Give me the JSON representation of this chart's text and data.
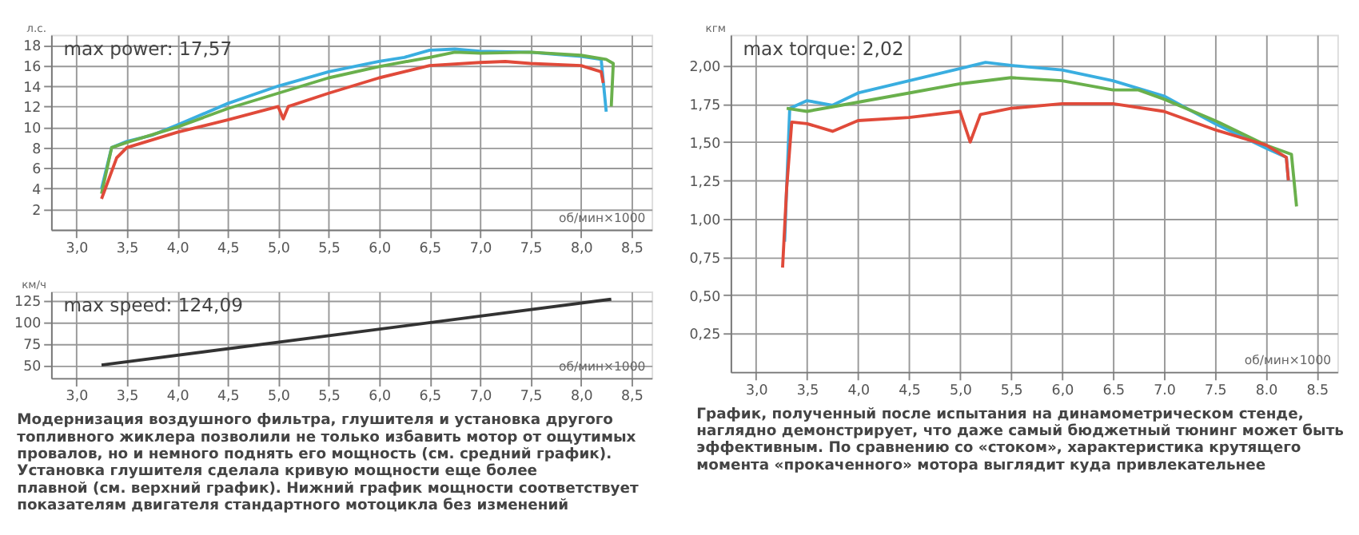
{
  "chart_data": [
    {
      "type": "line",
      "title": "max power: 17,57",
      "ylabel": "л.с.",
      "xlabel": "об/мин×1000",
      "grid": true,
      "legend": false,
      "marker": "none",
      "line_style": "solid",
      "xlim": [
        2.75,
        8.7
      ],
      "xticks": [
        {
          "value": 3,
          "label": "3,0"
        },
        {
          "value": 3.5,
          "label": "3,5"
        },
        {
          "value": 4,
          "label": "4,0"
        },
        {
          "value": 4.5,
          "label": "4,5"
        },
        {
          "value": 5,
          "label": "5,0"
        },
        {
          "value": 5.5,
          "label": "5,5"
        },
        {
          "value": 6,
          "label": "6,0"
        },
        {
          "value": 6.5,
          "label": "6,5"
        },
        {
          "value": 7,
          "label": "7,0"
        },
        {
          "value": 7.5,
          "label": "7,5"
        },
        {
          "value": 8,
          "label": "8,0"
        },
        {
          "value": 8.5,
          "label": "8,5"
        }
      ],
      "ylim": [
        0,
        19
      ],
      "yticks": [
        2,
        4,
        6,
        8,
        10,
        12,
        14,
        16,
        18
      ],
      "series": [
        {
          "color": "#3aaee0",
          "x": [
            3.25,
            3.35,
            3.5,
            3.75,
            4.0,
            4.5,
            5.0,
            5.5,
            6.0,
            6.25,
            6.5,
            6.75,
            7.0,
            7.5,
            7.75,
            8.0,
            8.2,
            8.25
          ],
          "values": [
            4,
            8,
            8.6,
            9.2,
            10.2,
            12.3,
            14.0,
            15.4,
            16.4,
            16.8,
            17.5,
            17.6,
            17.4,
            17.3,
            17.1,
            16.9,
            16.6,
            11.5
          ]
        },
        {
          "color": "#6ab04c",
          "x": [
            3.25,
            3.35,
            3.5,
            4.0,
            4.5,
            5.0,
            5.5,
            6.0,
            6.5,
            6.75,
            7.0,
            7.5,
            8.0,
            8.25,
            8.32,
            8.3
          ],
          "values": [
            3.5,
            8,
            8.5,
            10.0,
            11.8,
            13.3,
            14.8,
            15.9,
            16.8,
            17.3,
            17.2,
            17.3,
            17.0,
            16.6,
            16.2,
            12.0
          ]
        },
        {
          "color": "#e04a3a",
          "x": [
            3.25,
            3.4,
            3.5,
            4.0,
            4.5,
            5.0,
            5.05,
            5.1,
            5.5,
            6.0,
            6.5,
            7.0,
            7.25,
            7.5,
            8.0,
            8.2,
            8.22
          ],
          "values": [
            3,
            7,
            8.0,
            9.5,
            10.7,
            12.0,
            10.8,
            12.0,
            13.3,
            14.8,
            16.0,
            16.3,
            16.4,
            16.2,
            16.0,
            15.4,
            14.3
          ]
        }
      ]
    },
    {
      "type": "line",
      "title": "max speed: 124,09",
      "ylabel": "км/ч",
      "xlabel": "об/мин×1000",
      "grid": true,
      "legend": false,
      "marker": "none",
      "line_style": "solid",
      "xlim": [
        2.75,
        8.7
      ],
      "xticks": [
        {
          "value": 3,
          "label": "3,0"
        },
        {
          "value": 3.5,
          "label": "3,5"
        },
        {
          "value": 4,
          "label": "4,0"
        },
        {
          "value": 4.5,
          "label": "4,5"
        },
        {
          "value": 5,
          "label": "5,0"
        },
        {
          "value": 5.5,
          "label": "5,5"
        },
        {
          "value": 6,
          "label": "6,0"
        },
        {
          "value": 6.5,
          "label": "6,5"
        },
        {
          "value": 7,
          "label": "7,0"
        },
        {
          "value": 7.5,
          "label": "7,5"
        },
        {
          "value": 8,
          "label": "8,0"
        },
        {
          "value": 8.5,
          "label": "8,5"
        }
      ],
      "ylim": [
        35,
        135
      ],
      "yticks": [
        50,
        75,
        100,
        125
      ],
      "series": [
        {
          "color": "#333333",
          "x": [
            3.25,
            8.3
          ],
          "values": [
            50,
            126
          ]
        }
      ],
      "annotations": [
        "Модернизация воздушного фильтра, глушителя и установка другого\nтопливного жиклера позволили не только избавить мотор от ощутимых\nпровалов, но и немного поднять его мощность (см. средний график).\nУстановка глушителя сделала кривую мощности еще более\nплавной (см. верхний график). Нижний график мощности соответствует\nпоказателям двигателя стандартного мотоцикла без изменений"
      ]
    },
    {
      "type": "line",
      "title": "max torque: 2,02",
      "ylabel": "кгм",
      "xlabel": "об/мин×1000",
      "grid": true,
      "legend": false,
      "marker": "none",
      "line_style": "solid",
      "xlim": [
        2.75,
        8.7
      ],
      "xticks": [
        {
          "value": 3,
          "label": "3,0"
        },
        {
          "value": 3.5,
          "label": "3,5"
        },
        {
          "value": 4,
          "label": "4,0"
        },
        {
          "value": 4.5,
          "label": "4,5"
        },
        {
          "value": 5,
          "label": "5,0"
        },
        {
          "value": 5.5,
          "label": "5,5"
        },
        {
          "value": 6,
          "label": "6,0"
        },
        {
          "value": 6.5,
          "label": "6.5"
        },
        {
          "value": 7,
          "label": "7.0"
        },
        {
          "value": 7.5,
          "label": "7.5"
        },
        {
          "value": 8,
          "label": "8.0"
        },
        {
          "value": 8.5,
          "label": "8.5"
        }
      ],
      "ylim": [
        0,
        2.2
      ],
      "yticks": [
        {
          "value": 0.25,
          "label": "0,25"
        },
        {
          "value": 0.5,
          "label": "0,50"
        },
        {
          "value": 0.75,
          "label": "0,75"
        },
        {
          "value": 1,
          "label": "1,00"
        },
        {
          "value": 1.25,
          "label": "1,25"
        },
        {
          "value": 1.5,
          "label": "1,50"
        },
        {
          "value": 1.75,
          "label": "1,75"
        },
        {
          "value": 2,
          "label": "2,00"
        }
      ],
      "series": [
        {
          "color": "#3aaee0",
          "x": [
            3.28,
            3.33,
            3.5,
            3.75,
            4.0,
            4.5,
            5.0,
            5.25,
            5.5,
            6.0,
            6.5,
            7.0,
            7.5,
            8.0,
            8.2,
            8.22
          ],
          "values": [
            0.85,
            1.72,
            1.77,
            1.74,
            1.82,
            1.9,
            1.98,
            2.02,
            2.0,
            1.97,
            1.9,
            1.8,
            1.62,
            1.46,
            1.4,
            1.25
          ]
        },
        {
          "color": "#6ab04c",
          "x": [
            3.3,
            3.5,
            3.75,
            4.0,
            4.5,
            5.0,
            5.5,
            6.0,
            6.5,
            6.75,
            7.0,
            7.5,
            8.0,
            8.25,
            8.3
          ],
          "values": [
            1.72,
            1.7,
            1.73,
            1.76,
            1.82,
            1.88,
            1.92,
            1.9,
            1.84,
            1.84,
            1.78,
            1.64,
            1.48,
            1.42,
            1.08
          ]
        },
        {
          "color": "#e04a3a",
          "x": [
            3.26,
            3.3,
            3.35,
            3.5,
            3.75,
            4.0,
            4.5,
            5.0,
            5.1,
            5.2,
            5.5,
            6.0,
            6.5,
            7.0,
            7.5,
            8.0,
            8.2,
            8.22
          ],
          "values": [
            0.68,
            1.2,
            1.63,
            1.62,
            1.57,
            1.64,
            1.66,
            1.7,
            1.5,
            1.68,
            1.72,
            1.75,
            1.75,
            1.7,
            1.58,
            1.48,
            1.4,
            1.25
          ]
        }
      ],
      "annotations": [
        "График, полученный после испытания на динамометрическом стенде,\nнаглядно демонстрирует, что даже самый бюджетный тюнинг может быть\nэффективным. По сравнению со «стоком», характеристика крутящего\nмомента «прокаченного» мотора выглядит куда привлекательнее"
      ]
    }
  ]
}
